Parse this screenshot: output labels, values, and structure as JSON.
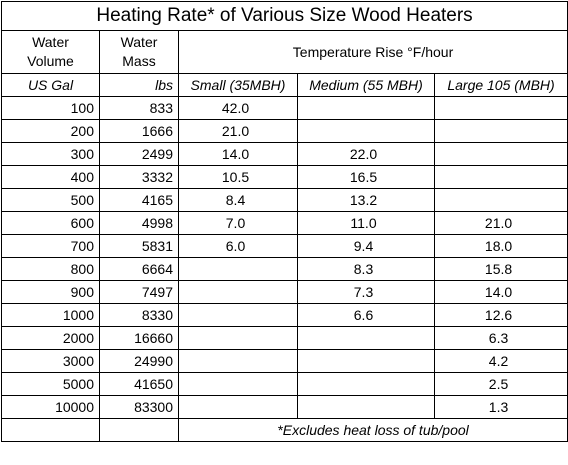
{
  "title": "Heating Rate* of Various Size Wood Heaters",
  "headers": {
    "water_volume": "Water Volume",
    "water_mass": "Water Mass",
    "temp_rise": "Temperature Rise °F/hour"
  },
  "units": {
    "gal": "US Gal",
    "lbs": "lbs",
    "small": "Small (35MBH)",
    "medium": "Medium (55 MBH)",
    "large": "Large 105 (MBH)"
  },
  "rows": [
    {
      "gal": "100",
      "lbs": "833",
      "small": "42.0",
      "medium": "",
      "large": ""
    },
    {
      "gal": "200",
      "lbs": "1666",
      "small": "21.0",
      "medium": "",
      "large": ""
    },
    {
      "gal": "300",
      "lbs": "2499",
      "small": "14.0",
      "medium": "22.0",
      "large": ""
    },
    {
      "gal": "400",
      "lbs": "3332",
      "small": "10.5",
      "medium": "16.5",
      "large": ""
    },
    {
      "gal": "500",
      "lbs": "4165",
      "small": "8.4",
      "medium": "13.2",
      "large": ""
    },
    {
      "gal": "600",
      "lbs": "4998",
      "small": "7.0",
      "medium": "11.0",
      "large": "21.0"
    },
    {
      "gal": "700",
      "lbs": "5831",
      "small": "6.0",
      "medium": "9.4",
      "large": "18.0"
    },
    {
      "gal": "800",
      "lbs": "6664",
      "small": "",
      "medium": "8.3",
      "large": "15.8"
    },
    {
      "gal": "900",
      "lbs": "7497",
      "small": "",
      "medium": "7.3",
      "large": "14.0"
    },
    {
      "gal": "1000",
      "lbs": "8330",
      "small": "",
      "medium": "6.6",
      "large": "12.6"
    },
    {
      "gal": "2000",
      "lbs": "16660",
      "small": "",
      "medium": "",
      "large": "6.3"
    },
    {
      "gal": "3000",
      "lbs": "24990",
      "small": "",
      "medium": "",
      "large": "4.2"
    },
    {
      "gal": "5000",
      "lbs": "41650",
      "small": "",
      "medium": "",
      "large": "2.5"
    },
    {
      "gal": "10000",
      "lbs": "83300",
      "small": "",
      "medium": "",
      "large": "1.3"
    }
  ],
  "footnote": "*Excludes heat loss of tub/pool"
}
